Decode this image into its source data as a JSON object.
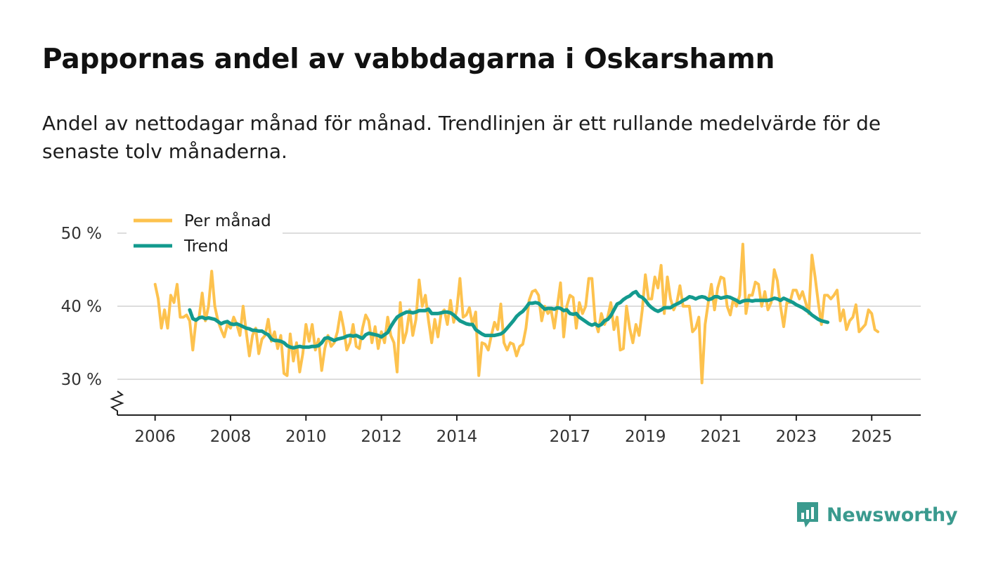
{
  "title": "Pappornas andel av vabbdagarna i Oskarshamn",
  "subtitle": "Andel av nettodagar månad för månad. Trendlinjen är ett rullande medelvärde för de senaste tolv månaderna.",
  "brand": {
    "name": "Newsworthy",
    "color": "#3a9a8e",
    "icon": "newsworthy-chart-icon"
  },
  "colors": {
    "monthly": "#fdc24e",
    "trend": "#139a8e",
    "grid": "#dddddd",
    "axis": "#222222"
  },
  "chart_data": {
    "type": "line",
    "y_tick_labels": [
      "30 %",
      "40 %",
      "50 %"
    ],
    "y_ticks": [
      30,
      40,
      50
    ],
    "ylim": [
      25,
      50
    ],
    "xlim": [
      2005.0,
      2026.3
    ],
    "x_ticks": [
      2006,
      2008,
      2010,
      2012,
      2014,
      2017,
      2019,
      2021,
      2023,
      2025
    ],
    "x_tick_labels": [
      "2006",
      "2008",
      "2010",
      "2012",
      "2014",
      "2017",
      "2019",
      "2021",
      "2023",
      "2025"
    ],
    "legend": {
      "placement": "top-left",
      "entries": [
        "Per månad",
        "Trend"
      ]
    },
    "series": [
      {
        "name": "Per månad",
        "x_start": 2006.0,
        "step": 0.08333,
        "values": [
          43.0,
          41.0,
          37.0,
          39.5,
          37.0,
          41.5,
          40.5,
          43.0,
          38.5,
          38.5,
          38.8,
          38.0,
          34.0,
          38.0,
          38.5,
          41.8,
          38.0,
          40.0,
          44.8,
          40.0,
          38.0,
          36.8,
          35.8,
          37.5,
          37.0,
          38.5,
          37.5,
          36.0,
          40.0,
          36.5,
          33.2,
          36.0,
          37.0,
          33.5,
          35.5,
          36.0,
          38.2,
          35.2,
          36.5,
          34.2,
          36.0,
          30.8,
          30.5,
          36.2,
          32.5,
          35.0,
          31.0,
          33.5,
          37.5,
          35.2,
          37.5,
          34.0,
          35.5,
          31.2,
          34.2,
          36.0,
          34.5,
          35.0,
          36.5,
          39.2,
          37.0,
          34.0,
          35.0,
          37.5,
          34.5,
          34.2,
          37.0,
          38.8,
          38.0,
          35.0,
          37.2,
          34.2,
          36.5,
          35.0,
          38.5,
          36.0,
          35.0,
          31.0,
          40.5,
          35.0,
          36.5,
          39.5,
          36.0,
          38.2,
          43.6,
          40.0,
          41.5,
          38.0,
          35.0,
          38.2,
          35.8,
          39.0,
          39.5,
          37.5,
          40.8,
          37.8,
          39.5,
          43.8,
          38.5,
          38.8,
          39.8,
          37.5,
          39.2,
          30.5,
          35.0,
          34.8,
          34.0,
          36.0,
          37.8,
          36.8,
          40.3,
          35.0,
          34.0,
          35.0,
          34.8,
          33.2,
          34.5,
          34.8,
          37.0,
          40.8,
          42.0,
          42.2,
          41.5,
          38.0,
          40.0,
          39.0,
          39.5,
          37.0,
          40.0,
          43.2,
          35.8,
          40.0,
          41.5,
          41.2,
          37.0,
          40.5,
          39.0,
          40.0,
          43.8,
          43.8,
          38.0,
          36.5,
          39.0,
          37.5,
          38.5,
          40.5,
          36.8,
          38.5,
          34.0,
          34.2,
          40.0,
          37.0,
          35.0,
          37.5,
          36.0,
          39.5,
          44.3,
          41.0,
          41.0,
          44.0,
          42.5,
          45.6,
          39.0,
          44.0,
          41.0,
          39.5,
          40.5,
          42.8,
          40.0,
          40.0,
          40.0,
          36.5,
          37.0,
          38.5,
          29.5,
          37.5,
          40.5,
          43.0,
          39.5,
          42.5,
          44.0,
          43.8,
          40.0,
          38.8,
          41.0,
          40.0,
          41.5,
          48.5,
          39.0,
          41.5,
          41.5,
          43.3,
          43.0,
          40.0,
          42.0,
          39.5,
          40.5,
          45.0,
          43.5,
          40.0,
          37.2,
          40.5,
          40.5,
          42.2,
          42.2,
          41.0,
          42.0,
          40.5,
          39.0,
          47.0,
          44.0,
          40.5,
          37.5,
          41.5,
          41.5,
          41.0,
          41.5,
          42.2,
          38.0,
          39.5,
          36.8,
          38.0,
          38.5,
          40.2,
          36.5,
          37.0,
          37.5,
          39.5,
          39.0,
          36.8,
          36.5
        ]
      },
      {
        "name": "Trend",
        "x_start": 2006.9167,
        "step": 0.08333,
        "values": [
          39.5,
          38.3,
          38.1,
          38.4,
          38.5,
          38.3,
          38.4,
          38.3,
          38.2,
          37.9,
          37.6,
          37.8,
          37.9,
          37.6,
          37.5,
          37.6,
          37.4,
          37.2,
          37.0,
          36.9,
          36.7,
          36.7,
          36.6,
          36.6,
          36.3,
          36.1,
          35.5,
          35.3,
          35.3,
          35.2,
          35.0,
          34.6,
          34.4,
          34.3,
          34.4,
          34.5,
          34.4,
          34.4,
          34.4,
          34.5,
          34.5,
          34.6,
          35.0,
          35.6,
          35.7,
          35.5,
          35.3,
          35.5,
          35.6,
          35.7,
          35.9,
          36.0,
          35.9,
          36.0,
          35.8,
          35.6,
          36.1,
          36.3,
          36.2,
          36.1,
          36.0,
          35.8,
          36.1,
          36.4,
          37.2,
          37.9,
          38.5,
          38.8,
          39.0,
          39.2,
          39.2,
          39.1,
          39.2,
          39.4,
          39.4,
          39.4,
          39.6,
          39.0,
          39.0,
          39.0,
          39.1,
          39.2,
          39.2,
          39.1,
          38.8,
          38.4,
          38.0,
          37.8,
          37.6,
          37.5,
          37.5,
          36.8,
          36.5,
          36.2,
          36.0,
          36.0,
          36.0,
          36.0,
          36.1,
          36.2,
          36.5,
          37.0,
          37.5,
          38.0,
          38.6,
          39.0,
          39.3,
          39.8,
          40.4,
          40.4,
          40.5,
          40.4,
          40.0,
          39.6,
          39.7,
          39.7,
          39.6,
          39.8,
          39.7,
          39.4,
          39.5,
          39.0,
          38.9,
          39.0,
          38.5,
          38.2,
          37.9,
          37.6,
          37.4,
          37.6,
          37.3,
          37.5,
          38.0,
          38.2,
          38.7,
          39.5,
          40.3,
          40.5,
          40.9,
          41.2,
          41.4,
          41.8,
          42.0,
          41.4,
          41.2,
          40.8,
          40.2,
          39.8,
          39.5,
          39.3,
          39.5,
          39.8,
          39.8,
          39.8,
          40.1,
          40.3,
          40.5,
          40.8,
          41.0,
          41.3,
          41.2,
          41.0,
          41.2,
          41.3,
          41.2,
          40.9,
          41.0,
          41.3,
          41.3,
          41.1,
          41.2,
          41.3,
          41.2,
          41.0,
          40.8,
          40.5,
          40.7,
          40.8,
          40.8,
          40.7,
          40.8,
          40.8,
          40.8,
          40.8,
          40.8,
          40.9,
          41.1,
          41.0,
          40.8,
          41.1,
          40.9,
          40.7,
          40.5,
          40.2,
          40.0,
          39.8,
          39.5,
          39.2,
          38.8,
          38.5,
          38.2,
          38.0,
          37.9,
          37.8
        ]
      }
    ]
  }
}
